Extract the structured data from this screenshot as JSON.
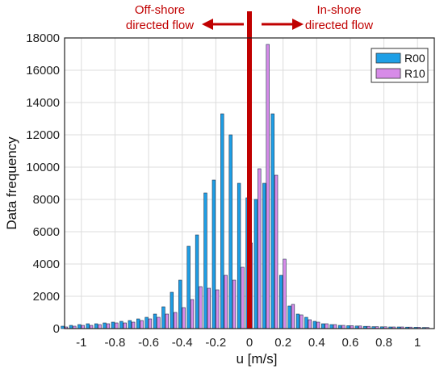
{
  "chart_data": {
    "type": "bar",
    "xlabel": "u [m/s]",
    "ylabel": "Data frequency",
    "xlim": [
      -1.1,
      1.1
    ],
    "ylim": [
      0,
      18000
    ],
    "xticks": [
      -1,
      -0.8,
      -0.6,
      -0.4,
      -0.2,
      0,
      0.2,
      0.4,
      0.6,
      0.8,
      1
    ],
    "xtick_labels": [
      "-1",
      "-0.8",
      "-0.6",
      "-0.4",
      "-0.2",
      "0",
      "0.2",
      "0.4",
      "0.6",
      "0.8",
      "1"
    ],
    "yticks": [
      0,
      2000,
      4000,
      6000,
      8000,
      10000,
      12000,
      14000,
      16000,
      18000
    ],
    "ytick_labels": [
      "0",
      "2000",
      "4000",
      "6000",
      "8000",
      "10000",
      "12000",
      "14000",
      "16000",
      "18000"
    ],
    "grid": true,
    "legend_position": "top-right",
    "bin_width": 0.05,
    "x": [
      -1.1,
      -1.05,
      -1.0,
      -0.95,
      -0.9,
      -0.85,
      -0.8,
      -0.75,
      -0.7,
      -0.65,
      -0.6,
      -0.55,
      -0.5,
      -0.45,
      -0.4,
      -0.35,
      -0.3,
      -0.25,
      -0.2,
      -0.15,
      -0.1,
      -0.05,
      0.0,
      0.05,
      0.1,
      0.15,
      0.2,
      0.25,
      0.3,
      0.35,
      0.4,
      0.45,
      0.5,
      0.55,
      0.6,
      0.65,
      0.7,
      0.75,
      0.8,
      0.85,
      0.9,
      0.95,
      1.0,
      1.05
    ],
    "series": [
      {
        "name": "R00",
        "color": "#1E9FE6",
        "values": [
          150,
          200,
          250,
          300,
          300,
          350,
          400,
          450,
          500,
          600,
          700,
          900,
          1350,
          2250,
          3000,
          5100,
          5800,
          8400,
          9200,
          13300,
          12000,
          9000,
          8100,
          8000,
          9000,
          13300,
          3300,
          1400,
          900,
          700,
          450,
          300,
          250,
          200,
          180,
          160,
          140,
          120,
          110,
          100,
          100,
          90,
          80,
          70
        ]
      },
      {
        "name": "R10",
        "color": "#D78BE8",
        "values": [
          100,
          150,
          200,
          200,
          250,
          300,
          350,
          350,
          400,
          500,
          600,
          700,
          900,
          1000,
          1300,
          1800,
          2600,
          2500,
          2400,
          3300,
          3000,
          3800,
          5300,
          9900,
          17600,
          9500,
          4300,
          1500,
          850,
          550,
          400,
          300,
          250,
          200,
          180,
          160,
          140,
          120,
          110,
          100,
          100,
          90,
          80,
          70
        ]
      }
    ],
    "annotations": [
      {
        "text": "Off-shore",
        "color": "#C00000"
      },
      {
        "text": "directed flow",
        "color": "#C00000"
      },
      {
        "text": "In-shore",
        "color": "#C00000"
      },
      {
        "text": "directed flow",
        "color": "#C00000"
      }
    ]
  }
}
